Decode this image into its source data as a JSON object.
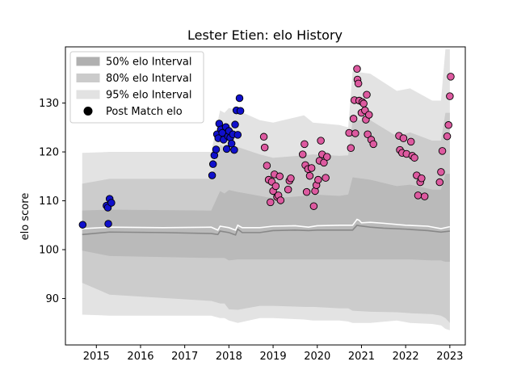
{
  "chart_data": {
    "type": "scatter",
    "title": "Lester Etien: elo History",
    "xlabel": "",
    "ylabel": "elo score",
    "xlim": [
      2014.3,
      2023.35
    ],
    "ylim": [
      80.5,
      141.5
    ],
    "x_ticks": [
      2015,
      2016,
      2017,
      2018,
      2019,
      2020,
      2021,
      2022,
      2023
    ],
    "y_ticks": [
      90,
      100,
      110,
      120,
      130
    ],
    "grid": false,
    "legend_position": "top-left",
    "legend": [
      {
        "label": "50% elo Interval",
        "kind": "band",
        "color": "#b0b0b0"
      },
      {
        "label": "80% elo Interval",
        "kind": "band",
        "color": "#cbcbcb"
      },
      {
        "label": "95% elo Interval",
        "kind": "band",
        "color": "#e2e2e2"
      },
      {
        "label": "Post Match elo",
        "kind": "marker",
        "color": "#000000"
      }
    ],
    "colors": {
      "band95": "#e3e3e3",
      "band80": "#cccccc",
      "band50": "#bababa",
      "median_line": "#888888",
      "mean_line": "#ffffff",
      "early_points": "#1010cc",
      "late_points": "#dd5aa0",
      "point_edge": "#000000"
    },
    "bands": {
      "x": [
        2014.68,
        2015.3,
        2017.6,
        2017.8,
        2017.9,
        2018.0,
        2018.2,
        2018.7,
        2019.0,
        2019.7,
        2019.9,
        2020.5,
        2020.7,
        2020.8,
        2021.2,
        2021.8,
        2022.1,
        2022.6,
        2022.8,
        2022.9,
        2023.0
      ],
      "p95_upper": [
        119.8,
        120.0,
        120.0,
        128.5,
        128.0,
        129.0,
        128.5,
        126.5,
        126.0,
        127.5,
        126.0,
        125.5,
        125.0,
        136.5,
        136.0,
        132.5,
        133.0,
        130.5,
        130.5,
        141.0,
        141.0
      ],
      "p80_upper": [
        113.5,
        114.5,
        114.5,
        121.5,
        121.0,
        121.5,
        121.0,
        119.5,
        118.8,
        119.3,
        119.5,
        119.2,
        119.3,
        126.5,
        126.5,
        123.2,
        124.0,
        122.3,
        122.3,
        128.0,
        128.0
      ],
      "p50_upper": [
        108.0,
        108.2,
        108.0,
        112.0,
        111.5,
        112.2,
        111.8,
        111.0,
        110.5,
        111.0,
        111.3,
        111.0,
        111.3,
        114.8,
        114.3,
        113.0,
        113.3,
        112.3,
        112.3,
        115.5,
        115.5
      ],
      "p50_lower": [
        99.8,
        98.7,
        98.3,
        98.3,
        98.3,
        97.8,
        98.0,
        98.0,
        98.0,
        98.0,
        98.0,
        98.0,
        98.0,
        98.0,
        98.0,
        98.0,
        98.0,
        97.8,
        97.8,
        97.5,
        97.5
      ],
      "p80_lower": [
        93.2,
        90.8,
        89.5,
        89.0,
        89.0,
        87.8,
        87.7,
        88.5,
        88.5,
        88.3,
        88.3,
        88.0,
        88.0,
        87.5,
        87.3,
        87.2,
        87.0,
        86.8,
        86.5,
        86.0,
        85.0
      ],
      "p95_lower": [
        86.7,
        86.5,
        86.5,
        86.0,
        86.0,
        85.5,
        85.0,
        86.0,
        86.0,
        85.7,
        85.5,
        85.5,
        85.3,
        85.0,
        85.0,
        85.5,
        85.0,
        84.8,
        84.5,
        83.8,
        83.5
      ]
    },
    "median_line": {
      "x": [
        2014.68,
        2015.3,
        2016.5,
        2017.6,
        2017.75,
        2017.8,
        2018.0,
        2018.15,
        2018.2,
        2018.3,
        2018.7,
        2019.0,
        2019.5,
        2019.8,
        2020.0,
        2020.5,
        2020.8,
        2020.9,
        2020.95,
        2021.2,
        2021.5,
        2022.0,
        2022.5,
        2022.8,
        2023.0
      ],
      "y": [
        103.1,
        103.6,
        103.5,
        103.3,
        103.1,
        103.8,
        103.5,
        103.0,
        104.2,
        103.5,
        103.5,
        103.9,
        104.0,
        103.9,
        104.0,
        104.0,
        104.0,
        105.0,
        104.9,
        104.6,
        104.4,
        104.2,
        103.9,
        103.6,
        103.8
      ]
    },
    "mean_line": {
      "x": [
        2014.68,
        2015.3,
        2016.5,
        2017.6,
        2017.75,
        2017.8,
        2018.0,
        2018.15,
        2018.2,
        2018.3,
        2018.7,
        2019.0,
        2019.5,
        2019.8,
        2020.0,
        2020.5,
        2020.8,
        2020.9,
        2020.95,
        2021.0,
        2021.2,
        2021.5,
        2022.0,
        2022.5,
        2022.8,
        2023.0
      ],
      "y": [
        104.3,
        104.6,
        104.5,
        104.6,
        104.0,
        104.8,
        104.5,
        104.0,
        105.0,
        104.5,
        104.5,
        104.8,
        104.9,
        104.6,
        104.9,
        105.0,
        105.0,
        106.2,
        106.0,
        105.5,
        105.6,
        105.4,
        105.0,
        104.8,
        104.3,
        104.7
      ]
    },
    "series": [
      {
        "name": "Post Match elo",
        "color": "#1010cc",
        "points": [
          [
            2014.69,
            105.1
          ],
          [
            2015.23,
            109.0
          ],
          [
            2015.26,
            108.6
          ],
          [
            2015.27,
            105.3
          ],
          [
            2015.3,
            110.4
          ],
          [
            2015.34,
            109.6
          ],
          [
            2017.62,
            115.2
          ],
          [
            2017.64,
            117.5
          ],
          [
            2017.67,
            119.3
          ],
          [
            2017.71,
            120.5
          ],
          [
            2017.73,
            123.6
          ],
          [
            2017.76,
            122.8
          ],
          [
            2017.78,
            125.8
          ],
          [
            2017.82,
            124.6
          ],
          [
            2017.85,
            123.9
          ],
          [
            2017.88,
            122.5
          ],
          [
            2017.93,
            125.1
          ],
          [
            2017.95,
            120.6
          ],
          [
            2017.98,
            123.2
          ],
          [
            2018.0,
            124.3
          ],
          [
            2018.03,
            122.9
          ],
          [
            2018.06,
            121.7
          ],
          [
            2018.09,
            123.6
          ],
          [
            2018.12,
            120.4
          ],
          [
            2018.14,
            125.6
          ],
          [
            2018.17,
            128.5
          ],
          [
            2018.2,
            123.5
          ],
          [
            2018.24,
            131.0
          ],
          [
            2018.26,
            128.4
          ]
        ]
      },
      {
        "name": "",
        "color": "#dd5aa0",
        "points": [
          [
            2018.79,
            123.1
          ],
          [
            2018.81,
            120.9
          ],
          [
            2018.86,
            117.2
          ],
          [
            2018.9,
            114.3
          ],
          [
            2018.94,
            109.7
          ],
          [
            2018.97,
            113.9
          ],
          [
            2019.0,
            112.0
          ],
          [
            2019.03,
            115.4
          ],
          [
            2019.06,
            113.0
          ],
          [
            2019.09,
            110.8
          ],
          [
            2019.12,
            111.1
          ],
          [
            2019.15,
            115.0
          ],
          [
            2019.17,
            110.1
          ],
          [
            2019.34,
            112.3
          ],
          [
            2019.37,
            114.1
          ],
          [
            2019.4,
            114.6
          ],
          [
            2019.67,
            119.5
          ],
          [
            2019.71,
            121.6
          ],
          [
            2019.73,
            117.3
          ],
          [
            2019.76,
            111.8
          ],
          [
            2019.79,
            116.5
          ],
          [
            2019.83,
            115.1
          ],
          [
            2019.87,
            116.7
          ],
          [
            2019.92,
            108.9
          ],
          [
            2019.95,
            112.0
          ],
          [
            2019.98,
            113.2
          ],
          [
            2020.02,
            114.3
          ],
          [
            2020.05,
            118.2
          ],
          [
            2020.08,
            122.3
          ],
          [
            2020.11,
            119.5
          ],
          [
            2020.15,
            117.8
          ],
          [
            2020.19,
            114.7
          ],
          [
            2020.22,
            119.0
          ],
          [
            2020.72,
            123.9
          ],
          [
            2020.76,
            120.8
          ],
          [
            2020.82,
            126.8
          ],
          [
            2020.84,
            130.6
          ],
          [
            2020.86,
            123.8
          ],
          [
            2020.9,
            137.0
          ],
          [
            2020.91,
            134.8
          ],
          [
            2020.93,
            134.0
          ],
          [
            2020.95,
            130.5
          ],
          [
            2021.0,
            128.0
          ],
          [
            2021.02,
            130.2
          ],
          [
            2021.05,
            129.9
          ],
          [
            2021.08,
            128.5
          ],
          [
            2021.1,
            126.6
          ],
          [
            2021.12,
            131.7
          ],
          [
            2021.14,
            123.6
          ],
          [
            2021.17,
            127.6
          ],
          [
            2021.22,
            122.5
          ],
          [
            2021.27,
            121.6
          ],
          [
            2021.85,
            123.3
          ],
          [
            2021.87,
            120.4
          ],
          [
            2021.92,
            119.8
          ],
          [
            2021.95,
            122.8
          ],
          [
            2022.02,
            119.6
          ],
          [
            2022.12,
            122.1
          ],
          [
            2022.15,
            119.2
          ],
          [
            2022.2,
            118.8
          ],
          [
            2022.25,
            115.2
          ],
          [
            2022.28,
            111.1
          ],
          [
            2022.33,
            113.8
          ],
          [
            2022.36,
            114.6
          ],
          [
            2022.43,
            110.9
          ],
          [
            2022.77,
            113.8
          ],
          [
            2022.8,
            115.9
          ],
          [
            2022.83,
            120.2
          ],
          [
            2022.94,
            123.2
          ],
          [
            2022.97,
            125.5
          ],
          [
            2023.0,
            131.4
          ],
          [
            2023.02,
            135.4
          ]
        ]
      }
    ]
  }
}
